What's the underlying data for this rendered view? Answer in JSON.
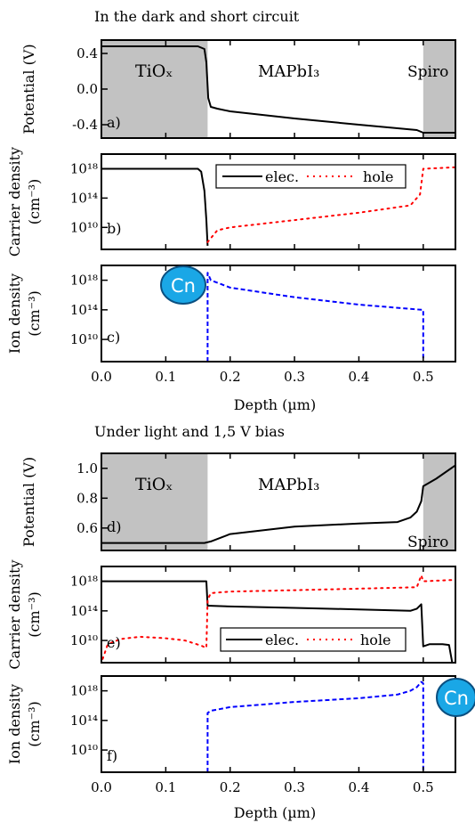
{
  "colors": {
    "region_fill": "#c2c2c2",
    "electron": "#000000",
    "hole": "#ff0000",
    "ion": "#0000ff",
    "badge": "#1aa7e6"
  },
  "badge_label": "Cn",
  "section1": {
    "title": "In the dark and short circuit",
    "xlabel": "Depth (µm)",
    "xticks": [
      "0.0",
      "0.1",
      "0.2",
      "0.3",
      "0.4",
      "0.5"
    ]
  },
  "section2": {
    "title": "Under light and 1,5 V bias",
    "xlabel": "Depth (µm)",
    "xticks": [
      "0.0",
      "0.1",
      "0.2",
      "0.3",
      "0.4",
      "0.5"
    ]
  },
  "panels": {
    "a": {
      "letter": "a)",
      "ylabel": "Potential (V)",
      "yticks": [
        "0.4",
        "0.0",
        "-0.4"
      ],
      "labels": {
        "left": "TiOₓ",
        "mid": "MAPbI₃",
        "right": "Spiro"
      }
    },
    "b": {
      "letter": "b)",
      "ylabel_1": "Carrier density",
      "ylabel_2": "(cm⁻³)",
      "yticks": [
        "10¹⁸",
        "10¹⁴",
        "10¹⁰"
      ],
      "legend": {
        "elec": "elec.",
        "hole": "hole"
      }
    },
    "c": {
      "letter": "c)",
      "ylabel_1": "Ion density",
      "ylabel_2": "(cm⁻³)",
      "yticks": [
        "10¹⁸",
        "10¹⁴",
        "10¹⁰"
      ]
    },
    "d": {
      "letter": "d)",
      "ylabel": "Potential (V)",
      "yticks": [
        "1.0",
        "0.8",
        "0.6"
      ],
      "labels": {
        "left": "TiOₓ",
        "mid": "MAPbI₃",
        "right": "Spiro"
      }
    },
    "e": {
      "letter": "e)",
      "ylabel_1": "Carrier density",
      "ylabel_2": "(cm⁻³)",
      "yticks": [
        "10¹⁸",
        "10¹⁴",
        "10¹⁰"
      ],
      "legend": {
        "elec": "elec.",
        "hole": "hole"
      }
    },
    "f": {
      "letter": "f)",
      "ylabel_1": "Ion density",
      "ylabel_2": "(cm⁻³)",
      "yticks": [
        "10¹⁸",
        "10¹⁴",
        "10¹⁰"
      ]
    }
  },
  "chart_data": [
    {
      "type": "line",
      "panel": "a",
      "xlim": [
        0.0,
        0.55
      ],
      "ylim": [
        -0.55,
        0.55
      ],
      "regions": [
        [
          0.0,
          0.165
        ],
        [
          0.5,
          0.55
        ]
      ],
      "series": [
        {
          "color": "#000000",
          "style": "solid",
          "x": [
            0.0,
            0.15,
            0.16,
            0.163,
            0.166,
            0.17,
            0.18,
            0.2,
            0.3,
            0.4,
            0.49,
            0.5,
            0.55
          ],
          "y": [
            0.48,
            0.48,
            0.45,
            0.3,
            -0.1,
            -0.2,
            -0.22,
            -0.25,
            -0.33,
            -0.4,
            -0.46,
            -0.49,
            -0.49
          ]
        }
      ]
    },
    {
      "type": "line",
      "panel": "b",
      "yscale": "log",
      "xlim": [
        0.0,
        0.55
      ],
      "ylim": [
        7,
        20
      ],
      "series": [
        {
          "name": "elec.",
          "color": "#000000",
          "style": "solid",
          "x": [
            0.0,
            0.15,
            0.155,
            0.16,
            0.163,
            0.165
          ],
          "y": [
            18.0,
            18.0,
            17.6,
            15.0,
            11.0,
            7.5
          ]
        },
        {
          "name": "hole",
          "color": "#ff0000",
          "style": "dotted",
          "x": [
            0.165,
            0.18,
            0.2,
            0.3,
            0.4,
            0.48,
            0.495,
            0.5,
            0.55
          ],
          "y": [
            8.0,
            9.6,
            10.0,
            11.0,
            12.0,
            13.0,
            14.5,
            18.0,
            18.2
          ]
        }
      ]
    },
    {
      "type": "line",
      "panel": "c",
      "yscale": "log",
      "xlim": [
        0.0,
        0.55
      ],
      "ylim": [
        7,
        20
      ],
      "series": [
        {
          "color": "#0000ff",
          "style": "dashed",
          "x": [
            0.165,
            0.165,
            0.17,
            0.2,
            0.3,
            0.4,
            0.497,
            0.5,
            0.5
          ],
          "y": [
            7.0,
            19.0,
            18.0,
            17.0,
            15.7,
            14.7,
            14.0,
            14.0,
            7.0
          ]
        }
      ]
    },
    {
      "type": "line",
      "panel": "d",
      "xlim": [
        0.0,
        0.55
      ],
      "ylim": [
        0.45,
        1.1
      ],
      "regions": [
        [
          0.0,
          0.165
        ],
        [
          0.5,
          0.55
        ]
      ],
      "series": [
        {
          "color": "#000000",
          "style": "solid",
          "x": [
            0.0,
            0.16,
            0.17,
            0.2,
            0.3,
            0.4,
            0.46,
            0.48,
            0.49,
            0.497,
            0.5,
            0.52,
            0.55
          ],
          "y": [
            0.5,
            0.5,
            0.51,
            0.56,
            0.61,
            0.63,
            0.64,
            0.67,
            0.71,
            0.78,
            0.88,
            0.93,
            1.02
          ]
        }
      ]
    },
    {
      "type": "line",
      "panel": "e",
      "yscale": "log",
      "xlim": [
        0.0,
        0.55
      ],
      "ylim": [
        7,
        20
      ],
      "series": [
        {
          "name": "elec.",
          "color": "#000000",
          "style": "solid",
          "x": [
            0.0,
            0.163,
            0.165,
            0.2,
            0.3,
            0.4,
            0.48,
            0.49,
            0.497,
            0.5,
            0.51,
            0.53,
            0.54,
            0.545
          ],
          "y": [
            18.0,
            18.0,
            14.7,
            14.6,
            14.4,
            14.2,
            14.0,
            14.3,
            14.9,
            9.2,
            9.5,
            9.5,
            9.4,
            7.0
          ]
        },
        {
          "name": "hole",
          "color": "#ff0000",
          "style": "dotted",
          "x": [
            0.002,
            0.01,
            0.03,
            0.06,
            0.1,
            0.13,
            0.155,
            0.163,
            0.165,
            0.17,
            0.2,
            0.3,
            0.4,
            0.49,
            0.497,
            0.5,
            0.55
          ],
          "y": [
            7.5,
            9.5,
            10.2,
            10.5,
            10.3,
            10.0,
            9.3,
            9.0,
            15.5,
            16.4,
            16.6,
            16.8,
            17.0,
            17.2,
            18.8,
            18.0,
            18.2
          ]
        }
      ]
    },
    {
      "type": "line",
      "panel": "f",
      "yscale": "log",
      "xlim": [
        0.0,
        0.55
      ],
      "ylim": [
        7,
        20
      ],
      "series": [
        {
          "color": "#0000ff",
          "style": "dashed",
          "x": [
            0.165,
            0.165,
            0.17,
            0.2,
            0.3,
            0.4,
            0.46,
            0.48,
            0.49,
            0.497,
            0.5,
            0.5
          ],
          "y": [
            7.0,
            15.0,
            15.3,
            15.8,
            16.5,
            17.0,
            17.5,
            18.0,
            18.5,
            19.2,
            19.0,
            7.0
          ]
        }
      ]
    }
  ]
}
